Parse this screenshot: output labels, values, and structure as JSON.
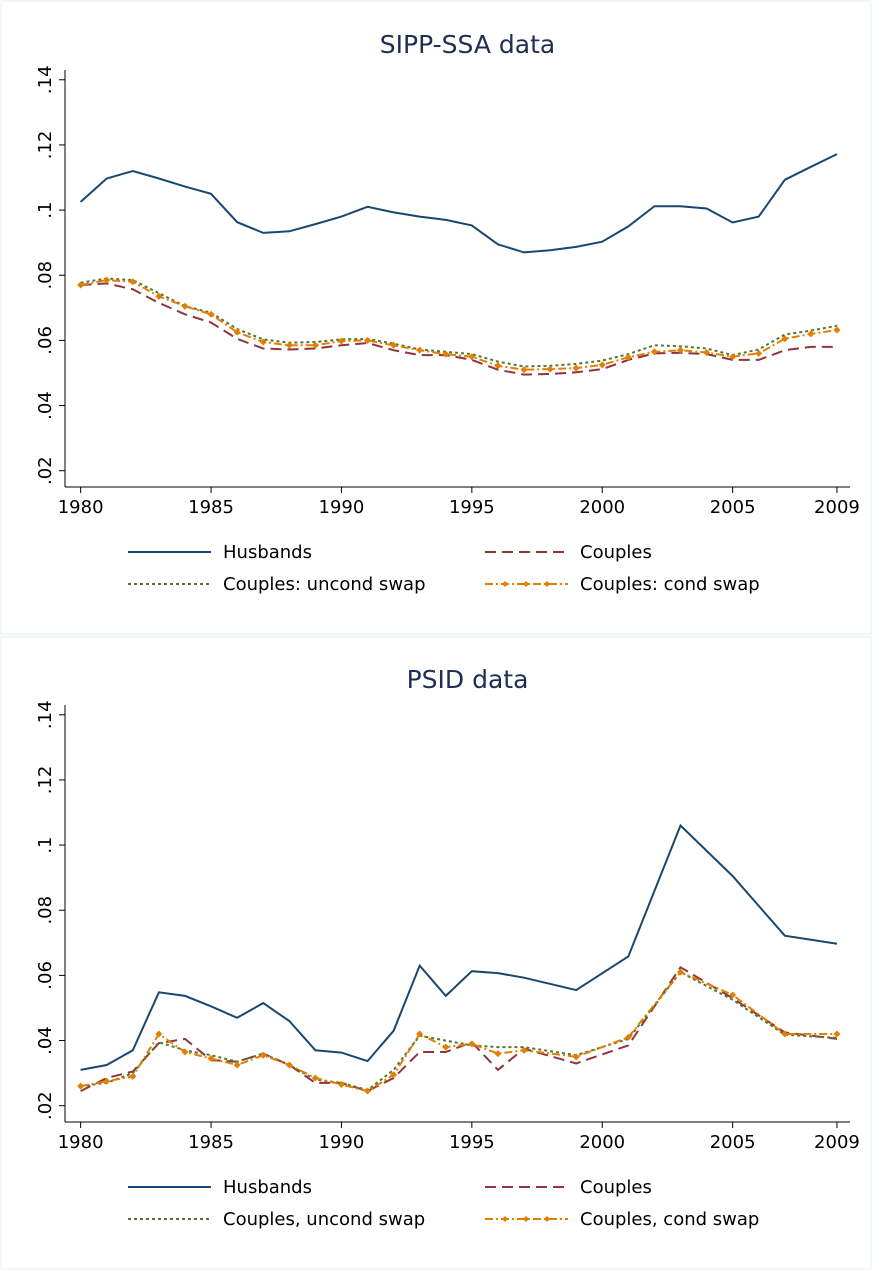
{
  "chart_data": [
    {
      "type": "line",
      "title": "SIPP-SSA data",
      "x": [
        1980,
        1981,
        1982,
        1983,
        1984,
        1985,
        1986,
        1987,
        1988,
        1989,
        1990,
        1991,
        1992,
        1993,
        1994,
        1995,
        1996,
        1997,
        1998,
        1999,
        2000,
        2001,
        2002,
        2003,
        2004,
        2005,
        2006,
        2007,
        2008,
        2009
      ],
      "xlim": [
        1979.4,
        2009.5
      ],
      "xticks": [
        1980,
        1985,
        1990,
        1995,
        2000,
        2005,
        2009
      ],
      "ylim": [
        0.015,
        0.143
      ],
      "yticks": [
        {
          "value": 0.02,
          "label": ".02"
        },
        {
          "value": 0.04,
          "label": ".04"
        },
        {
          "value": 0.06,
          "label": ".06"
        },
        {
          "value": 0.08,
          "label": ".08"
        },
        {
          "value": 0.1,
          "label": ".1"
        },
        {
          "value": 0.12,
          "label": ".12"
        },
        {
          "value": 0.14,
          "label": ".14"
        }
      ],
      "grid": false,
      "legend": "bottom",
      "series": [
        {
          "name": "Husbands",
          "color": "#1a476f",
          "style": "solid",
          "values": [
            0.1025,
            0.1097,
            0.112,
            0.1097,
            0.1072,
            0.105,
            0.0963,
            0.093,
            0.0935,
            0.0957,
            0.098,
            0.101,
            0.0993,
            0.098,
            0.097,
            0.0953,
            0.0895,
            0.087,
            0.0877,
            0.0887,
            0.0903,
            0.095,
            0.1012,
            0.1012,
            0.1005,
            0.0962,
            0.098,
            0.1093,
            0.1133,
            0.1172
          ]
        },
        {
          "name": "Couples",
          "color": "#90353b",
          "style": "dashed",
          "values": [
            0.077,
            0.0775,
            0.0757,
            0.0715,
            0.068,
            0.0655,
            0.0605,
            0.0575,
            0.0572,
            0.0575,
            0.0585,
            0.0592,
            0.057,
            0.0555,
            0.0555,
            0.054,
            0.051,
            0.0495,
            0.0497,
            0.0502,
            0.0512,
            0.054,
            0.056,
            0.0562,
            0.0558,
            0.054,
            0.054,
            0.057,
            0.058,
            0.058
          ]
        },
        {
          "name": "Couples: uncond swap",
          "color": "#55752f",
          "style": "dotted",
          "values": [
            0.0777,
            0.079,
            0.0785,
            0.0745,
            0.0705,
            0.0685,
            0.0635,
            0.0603,
            0.0593,
            0.0595,
            0.0603,
            0.0605,
            0.059,
            0.0572,
            0.0565,
            0.0558,
            0.0535,
            0.052,
            0.0522,
            0.0528,
            0.0538,
            0.0558,
            0.0585,
            0.0582,
            0.0575,
            0.0555,
            0.0572,
            0.0618,
            0.063,
            0.0645
          ]
        },
        {
          "name": "Couples: cond swap",
          "color": "#e37e00",
          "style": "dashdot",
          "marker": "diamond",
          "values": [
            0.077,
            0.0785,
            0.078,
            0.0735,
            0.0705,
            0.068,
            0.0625,
            0.0595,
            0.0585,
            0.0585,
            0.0598,
            0.06,
            0.0585,
            0.057,
            0.0558,
            0.055,
            0.0522,
            0.051,
            0.0512,
            0.0515,
            0.0525,
            0.0548,
            0.0565,
            0.057,
            0.0563,
            0.055,
            0.056,
            0.0605,
            0.062,
            0.0632
          ]
        }
      ]
    },
    {
      "type": "line",
      "title": "PSID data",
      "x": [
        1980,
        1981,
        1982,
        1983,
        1984,
        1985,
        1986,
        1987,
        1988,
        1989,
        1990,
        1991,
        1992,
        1993,
        1994,
        1995,
        1996,
        1997,
        1999,
        2001,
        2003,
        2005,
        2007,
        2009
      ],
      "xlim": [
        1979.4,
        2009.5
      ],
      "xticks": [
        1980,
        1985,
        1990,
        1995,
        2000,
        2005,
        2009
      ],
      "ylim": [
        0.015,
        0.143
      ],
      "yticks": [
        {
          "value": 0.02,
          "label": ".02"
        },
        {
          "value": 0.04,
          "label": ".04"
        },
        {
          "value": 0.06,
          "label": ".06"
        },
        {
          "value": 0.08,
          "label": ".08"
        },
        {
          "value": 0.1,
          "label": ".1"
        },
        {
          "value": 0.12,
          "label": ".12"
        },
        {
          "value": 0.14,
          "label": ".14"
        }
      ],
      "grid": false,
      "legend": "bottom",
      "series": [
        {
          "name": "Husbands",
          "color": "#1a476f",
          "style": "solid",
          "values": [
            0.031,
            0.0325,
            0.037,
            0.0548,
            0.0537,
            0.0505,
            0.047,
            0.0515,
            0.046,
            0.037,
            0.0363,
            0.0337,
            0.043,
            0.063,
            0.0537,
            0.0613,
            0.0607,
            0.0593,
            0.0555,
            0.0658,
            0.106,
            0.0905,
            0.0722,
            0.0697
          ]
        },
        {
          "name": "Couples",
          "color": "#90353b",
          "style": "dashed",
          "values": [
            0.0245,
            0.0285,
            0.0305,
            0.0392,
            0.0405,
            0.034,
            0.0335,
            0.036,
            0.0325,
            0.027,
            0.027,
            0.0245,
            0.0285,
            0.0365,
            0.0365,
            0.0395,
            0.031,
            0.0375,
            0.033,
            0.0385,
            0.0625,
            0.053,
            0.0425,
            0.0405
          ]
        },
        {
          "name": "Couples, uncond swap",
          "color": "#55752f",
          "style": "dotted",
          "values": [
            0.026,
            0.027,
            0.03,
            0.0395,
            0.037,
            0.0355,
            0.0335,
            0.036,
            0.0325,
            0.028,
            0.027,
            0.0248,
            0.031,
            0.0415,
            0.04,
            0.0385,
            0.038,
            0.038,
            0.0355,
            0.0405,
            0.061,
            0.0525,
            0.0418,
            0.0408
          ]
        },
        {
          "name": "Couples, cond swap",
          "color": "#e37e00",
          "style": "dashdot",
          "marker": "diamond",
          "values": [
            0.026,
            0.0275,
            0.029,
            0.042,
            0.0365,
            0.0345,
            0.0325,
            0.0355,
            0.0325,
            0.0285,
            0.0265,
            0.0245,
            0.0295,
            0.042,
            0.038,
            0.039,
            0.036,
            0.037,
            0.035,
            0.041,
            0.061,
            0.054,
            0.042,
            0.042
          ]
        }
      ]
    }
  ]
}
